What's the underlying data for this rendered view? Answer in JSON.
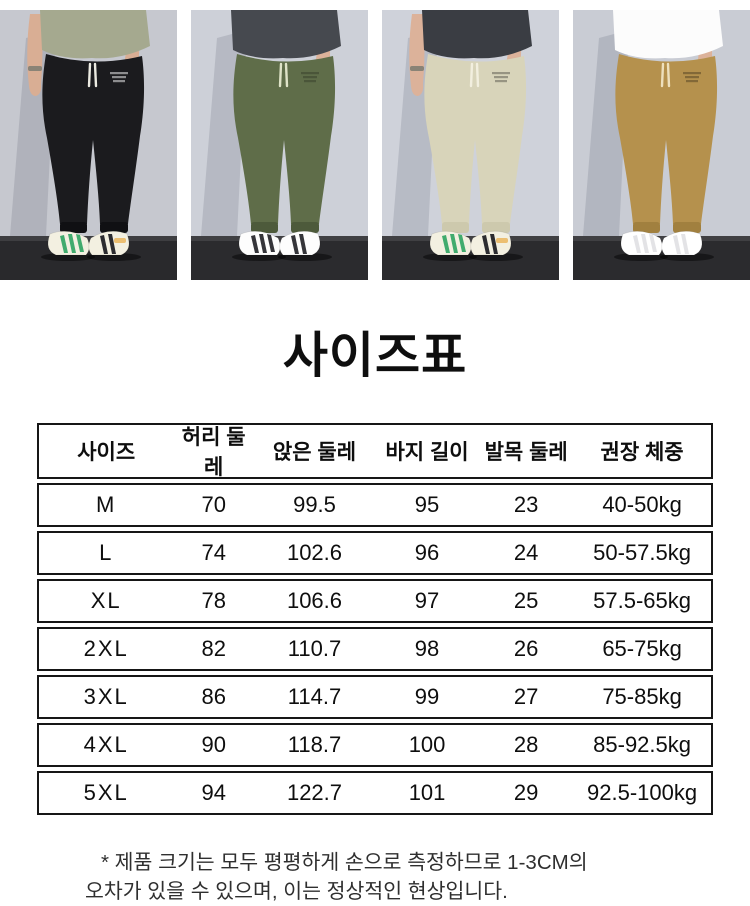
{
  "theme": {
    "page_bg": "#ffffff",
    "text": "#0e0e0e",
    "table_border": "#161616",
    "note_text": "#2f2f2f"
  },
  "title": "사이즈표",
  "product_photos": [
    {
      "id": "black-joggers",
      "side_arm": true,
      "colors": {
        "wall": "#c6c8cf",
        "floor": "#29292c",
        "shirt": "#a5a98f",
        "pants": "#1b1b1e",
        "cuff": "#101013",
        "skin": "#d9ae94",
        "string": "#ecebe2",
        "logo": "rgba(255,255,255,0.5)",
        "shoe": "#f3f0e1",
        "accent": "#41ab6e",
        "accent2": "#2c2c30",
        "strap": "#ecbf72"
      }
    },
    {
      "id": "olive-joggers",
      "side_arm": false,
      "colors": {
        "wall": "#cdd0d8",
        "floor": "#2b2b2e",
        "shirt": "#46494f",
        "pants": "#5f6d49",
        "cuff": "#4d5a3b",
        "skin": "#dcb29a",
        "string": "#dfe3c8",
        "logo": "rgba(0,0,0,0.22)",
        "shoe": "#fdfdfd",
        "accent": "#35353a",
        "accent2": "#35353a",
        "strap": "#fdfdfd"
      }
    },
    {
      "id": "beige-joggers",
      "side_arm": true,
      "colors": {
        "wall": "#cfd2da",
        "floor": "#2b2b2e",
        "shirt": "#3a3d43",
        "pants": "#d8d4ba",
        "cuff": "#cdc9ad",
        "skin": "#dcb29a",
        "string": "#f2efdf",
        "logo": "rgba(0,0,0,0.3)",
        "shoe": "#f3f0e1",
        "accent": "#41ab6e",
        "accent2": "#2c2c30",
        "strap": "#ecbf72"
      }
    },
    {
      "id": "khaki-joggers",
      "side_arm": false,
      "colors": {
        "wall": "#c9ccd4",
        "floor": "#2b2b2e",
        "shirt": "#fcfcfc",
        "pants": "#b5914d",
        "cuff": "#a1803f",
        "skin": "#dcb29a",
        "string": "#eee0bd",
        "logo": "rgba(0,0,0,0.28)",
        "shoe": "#ffffff",
        "accent": "#e3e3e6",
        "accent2": "#e3e3e6",
        "strap": "#ffffff"
      }
    }
  ],
  "size_table": {
    "headers": [
      "사이즈",
      "허리 둘레",
      "앉은 둘레",
      "바지 길이",
      "발목 둘레",
      "권장 체중"
    ],
    "rows": [
      [
        "M",
        "70",
        "99.5",
        "95",
        "23",
        "40-50kg"
      ],
      [
        "L",
        "74",
        "102.6",
        "96",
        "24",
        "50-57.5kg"
      ],
      [
        "XL",
        "78",
        "106.6",
        "97",
        "25",
        "57.5-65kg"
      ],
      [
        "2XL",
        "82",
        "110.7",
        "98",
        "26",
        "65-75kg"
      ],
      [
        "3XL",
        "86",
        "114.7",
        "99",
        "27",
        "75-85kg"
      ],
      [
        "4XL",
        "90",
        "118.7",
        "100",
        "28",
        "85-92.5kg"
      ],
      [
        "5XL",
        "94",
        "122.7",
        "101",
        "29",
        "92.5-100kg"
      ]
    ]
  },
  "note": {
    "line1": "* 제품 크기는 모두 평평하게 손으로 측정하므로 1-3CM의",
    "line2": "오차가 있을 수 있으며, 이는 정상적인 현상입니다."
  }
}
